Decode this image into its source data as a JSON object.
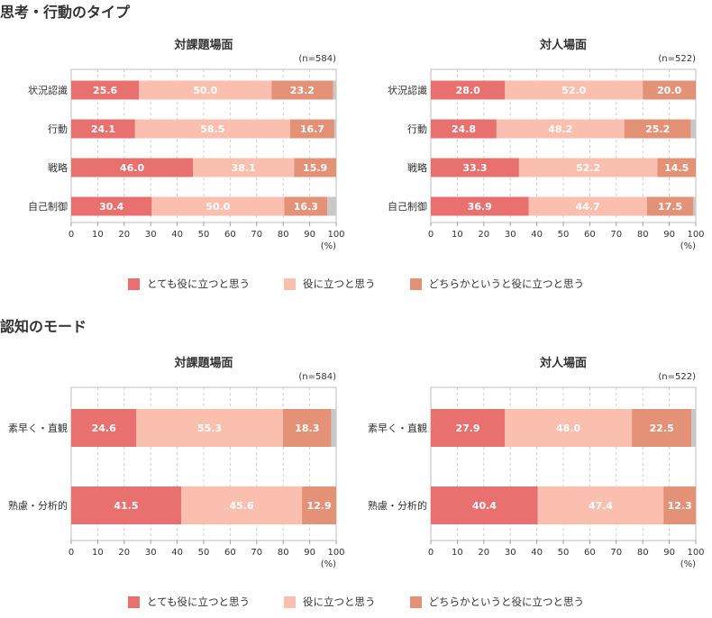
{
  "sections": [
    {
      "title": "思考・行動のタイプ"
    },
    {
      "title": "認知のモード"
    }
  ],
  "legend": [
    {
      "label": "とても役に立つと思う",
      "color": "#e8706f"
    },
    {
      "label": "役に立つと思う",
      "color": "#fbbfaf"
    },
    {
      "label": "どちらかというと役に立つと思う",
      "color": "#e49277"
    }
  ],
  "other_color": "#c8c8c8",
  "chart_data": [
    {
      "type": "bar",
      "orientation": "horizontal",
      "stacked": true,
      "title": "対課題場面",
      "note": "(n=584)",
      "categories": [
        "状況認識",
        "行動",
        "戦略",
        "自己制御"
      ],
      "series": [
        {
          "name": "とても役に立つと思う",
          "values": [
            25.6,
            24.1,
            46.0,
            30.4
          ]
        },
        {
          "name": "役に立つと思う",
          "values": [
            50.0,
            58.5,
            38.1,
            50.0
          ]
        },
        {
          "name": "どちらかというと役に立つと思う",
          "values": [
            23.2,
            16.7,
            15.9,
            16.3
          ]
        }
      ],
      "xlim": [
        0,
        100
      ],
      "xticks": [
        "0",
        "10",
        "20",
        "30",
        "40",
        "50",
        "60",
        "70",
        "80",
        "90",
        "100"
      ],
      "xunit": "(%)",
      "grid": true
    },
    {
      "type": "bar",
      "orientation": "horizontal",
      "stacked": true,
      "title": "対人場面",
      "note": "(n=522)",
      "categories": [
        "状況認識",
        "行動",
        "戦略",
        "自己制御"
      ],
      "series": [
        {
          "name": "とても役に立つと思う",
          "values": [
            28.0,
            24.8,
            33.3,
            36.9
          ]
        },
        {
          "name": "役に立つと思う",
          "values": [
            52.0,
            48.2,
            52.2,
            44.7
          ]
        },
        {
          "name": "どちらかというと役に立つと思う",
          "values": [
            20.0,
            25.2,
            14.5,
            17.5
          ]
        }
      ],
      "xlim": [
        0,
        100
      ],
      "xticks": [
        "0",
        "10",
        "20",
        "30",
        "40",
        "50",
        "60",
        "70",
        "80",
        "90",
        "100"
      ],
      "xunit": "(%)",
      "grid": true
    },
    {
      "type": "bar",
      "orientation": "horizontal",
      "stacked": true,
      "title": "対課題場面",
      "note": "(n=584)",
      "categories": [
        "素早く・直観",
        "熟慮・分析的"
      ],
      "series": [
        {
          "name": "とても役に立つと思う",
          "values": [
            24.6,
            41.5
          ]
        },
        {
          "name": "役に立つと思う",
          "values": [
            55.3,
            45.6
          ]
        },
        {
          "name": "どちらかというと役に立つと思う",
          "values": [
            18.3,
            12.9
          ]
        }
      ],
      "xlim": [
        0,
        100
      ],
      "xticks": [
        "0",
        "10",
        "20",
        "30",
        "40",
        "50",
        "60",
        "70",
        "80",
        "90",
        "100"
      ],
      "xunit": "(%)",
      "grid": true
    },
    {
      "type": "bar",
      "orientation": "horizontal",
      "stacked": true,
      "title": "対人場面",
      "note": "(n=522)",
      "categories": [
        "素早く・直観",
        "熟慮・分析的"
      ],
      "series": [
        {
          "name": "とても役に立つと思う",
          "values": [
            27.9,
            40.4
          ]
        },
        {
          "name": "役に立つと思う",
          "values": [
            48.0,
            47.4
          ]
        },
        {
          "name": "どちらかというと役に立つと思う",
          "values": [
            22.5,
            12.3
          ]
        }
      ],
      "xlim": [
        0,
        100
      ],
      "xticks": [
        "0",
        "10",
        "20",
        "30",
        "40",
        "50",
        "60",
        "70",
        "80",
        "90",
        "100"
      ],
      "xunit": "(%)",
      "grid": true
    }
  ]
}
